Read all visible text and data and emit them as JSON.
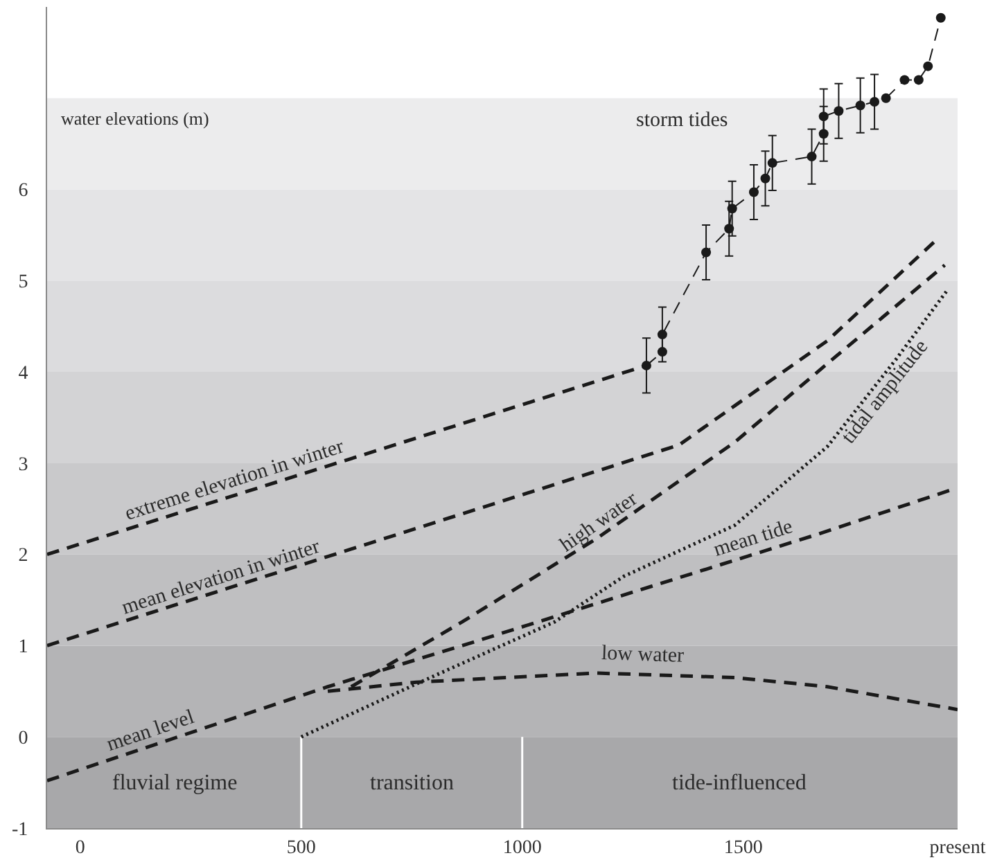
{
  "chart_data": {
    "type": "line",
    "ylabel": "water elevations (m)",
    "xlim": [
      -75,
      1985
    ],
    "ylim": [
      -1,
      8
    ],
    "xticks": [
      0,
      500,
      1000,
      1500,
      {
        "value": 1985,
        "label": "present"
      }
    ],
    "yticks": [
      -1,
      0,
      1,
      2,
      3,
      4,
      5,
      6
    ],
    "grid": false,
    "legend": false,
    "line_style": "dashed",
    "series": [
      {
        "name": "extreme elevation in winter",
        "color": "#1a1a1a",
        "x": [
          -75,
          1281
        ],
        "values": [
          2.0,
          4.07
        ]
      },
      {
        "name": "mean elevation in winter",
        "color": "#1a1a1a",
        "x": [
          -75,
          1355,
          1481,
          1690,
          1940
        ],
        "values": [
          1.0,
          3.2,
          3.63,
          4.34,
          5.46
        ]
      },
      {
        "name": "high water",
        "color": "#1a1a1a",
        "x": [
          613,
          864,
          1167,
          1481,
          1690,
          1956
        ],
        "values": [
          0.55,
          1.26,
          2.17,
          3.23,
          4.09,
          5.17
        ]
      },
      {
        "name": "mean level",
        "color": "#1a1a1a",
        "x": [
          -75,
          560,
          864,
          1167,
          1668,
          1966
        ],
        "values": [
          -0.48,
          0.55,
          1.0,
          1.46,
          2.22,
          2.7
        ]
      },
      {
        "name": "low water",
        "color": "#1a1a1a",
        "x": [
          560,
          760,
          1167,
          1481,
          1690,
          1985
        ],
        "values": [
          0.5,
          0.6,
          0.7,
          0.65,
          0.55,
          0.3
        ]
      },
      {
        "name": "tidal amplitude",
        "color": "#1a1a1a",
        "line_style": "dotted",
        "x": [
          500,
          760,
          1073,
          1230,
          1481,
          1690,
          1846,
          1961
        ],
        "values": [
          0.0,
          0.58,
          1.26,
          1.76,
          2.32,
          3.18,
          4.14,
          4.89
        ]
      },
      {
        "name": "storm tides",
        "color": "#1a1a1a",
        "marker": "circle",
        "x": [
          1281,
          1317,
          1317,
          1416,
          1468,
          1475,
          1524,
          1550,
          1566,
          1655,
          1682,
          1682,
          1716,
          1765,
          1797,
          1823,
          1865,
          1897,
          1918,
          1947
        ],
        "values": [
          4.07,
          4.22,
          4.41,
          5.31,
          5.57,
          5.79,
          5.97,
          6.12,
          6.29,
          6.36,
          6.61,
          6.8,
          6.86,
          6.92,
          6.96,
          7.0,
          7.2,
          7.2,
          7.35,
          7.88
        ],
        "errors": [
          0.3,
          null,
          0.3,
          0.3,
          0.3,
          0.3,
          0.3,
          0.3,
          0.3,
          0.3,
          0.3,
          0.3,
          0.3,
          0.3,
          0.3,
          null,
          null,
          null,
          null,
          null
        ]
      }
    ],
    "bands": [
      {
        "axis": "y",
        "from": -1,
        "to": 0,
        "color": "#a8a8aa"
      },
      {
        "axis": "y",
        "from": 0,
        "to": 1,
        "color": "#b4b4b6"
      },
      {
        "axis": "y",
        "from": 1,
        "to": 2,
        "color": "#bfbfc1"
      },
      {
        "axis": "y",
        "from": 2,
        "to": 3,
        "color": "#c9c9cb"
      },
      {
        "axis": "y",
        "from": 3,
        "to": 4,
        "color": "#d3d3d5"
      },
      {
        "axis": "y",
        "from": 4,
        "to": 5,
        "color": "#dcdcde"
      },
      {
        "axis": "y",
        "from": 5,
        "to": 6,
        "color": "#e4e4e6"
      },
      {
        "axis": "y",
        "from": 6,
        "to": 7,
        "color": "#ececed"
      }
    ],
    "ref_lines": [
      {
        "axis": "x",
        "value": 500,
        "color": "#ffffff"
      },
      {
        "axis": "x",
        "value": 1000,
        "color": "#ffffff"
      }
    ],
    "annotations": [
      "fluvial regime",
      "transition",
      "tide-influenced",
      {
        "text": "mean tide",
        "x": 1533,
        "y": 2.02
      }
    ]
  }
}
